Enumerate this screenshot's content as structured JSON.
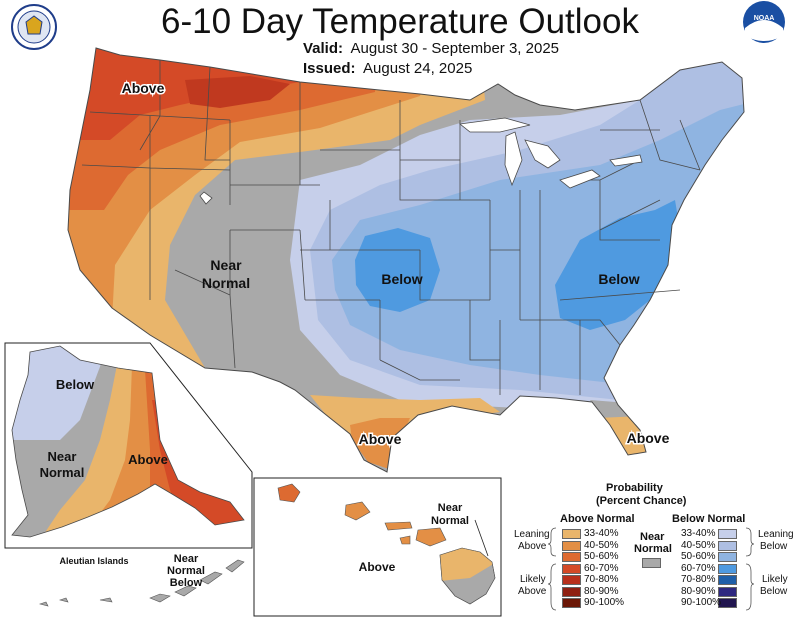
{
  "title": "6-10 Day Temperature Outlook",
  "valid_label": "Valid:",
  "valid_dates": "August 30 - September 3, 2025",
  "issued_label": "Issued:",
  "issued_date": "August 24, 2025",
  "logos": {
    "left": "commerce-seal",
    "right": "noaa-logo",
    "noaa_text": "NOAA"
  },
  "regions": {
    "above_northwest": "Above",
    "near_normal_west_1": "Near",
    "near_normal_west_2": "Normal",
    "below_plains": "Below",
    "below_east": "Below",
    "above_texas": "Above",
    "above_florida": "Above"
  },
  "alaska": {
    "below": "Below",
    "near_1": "Near",
    "near_2": "Normal",
    "above": "Above",
    "aleutian_islands": "Aleutian Islands",
    "aleutian_near_1": "Near",
    "aleutian_near_2": "Normal",
    "aleutian_below": "Below"
  },
  "hawaii": {
    "near_1": "Near",
    "near_2": "Normal",
    "above": "Above"
  },
  "legend": {
    "title_1": "Probability",
    "title_2": "(Percent Chance)",
    "above_header": "Above Normal",
    "below_header": "Below Normal",
    "near_1": "Near",
    "near_2": "Normal",
    "leaning_above_1": "Leaning",
    "leaning_above_2": "Above",
    "likely_above_1": "Likely",
    "likely_above_2": "Above",
    "leaning_below_1": "Leaning",
    "leaning_below_2": "Below",
    "likely_below_1": "Likely",
    "likely_below_2": "Below",
    "ranges": [
      "33-40%",
      "40-50%",
      "50-60%",
      "60-70%",
      "70-80%",
      "80-90%",
      "90-100%"
    ],
    "above_colors": [
      "#e9b56b",
      "#e38f45",
      "#dd6a31",
      "#d44a27",
      "#b8301c",
      "#8f2012",
      "#6b1706"
    ],
    "below_colors": [
      "#c6cfea",
      "#aebfe3",
      "#8fb4e1",
      "#4f9ae0",
      "#1f5fa8",
      "#2e2880",
      "#21154f"
    ],
    "near_color": "#a9a9a9"
  },
  "colors": {
    "gray": "#a9a9a9",
    "above_33": "#e9b56b",
    "above_40": "#e38f45",
    "above_50": "#dd6a31",
    "above_60": "#d44a27",
    "below_33": "#c6cfea",
    "below_40": "#aebfe3",
    "below_50": "#8fb4e1",
    "below_60": "#4f9ae0"
  }
}
